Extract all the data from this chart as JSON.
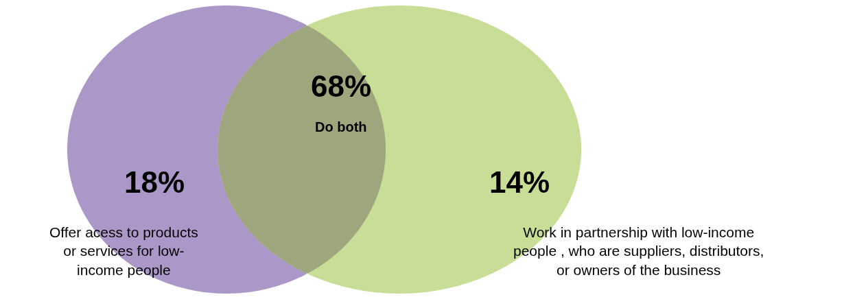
{
  "chart_data": {
    "type": "other",
    "categories": [
      "Offer acess to products\nor services for low-\nincome people",
      "Do both",
      "Work in partnership with low-income\npeople , who are suppliers, distributors,\nor owners of the business"
    ],
    "values": [
      18,
      68,
      14
    ],
    "value_labels": [
      "18%",
      "68%",
      "14%"
    ],
    "colors": [
      "#ab98c8",
      "#9ea67e",
      "#c8de96"
    ]
  }
}
